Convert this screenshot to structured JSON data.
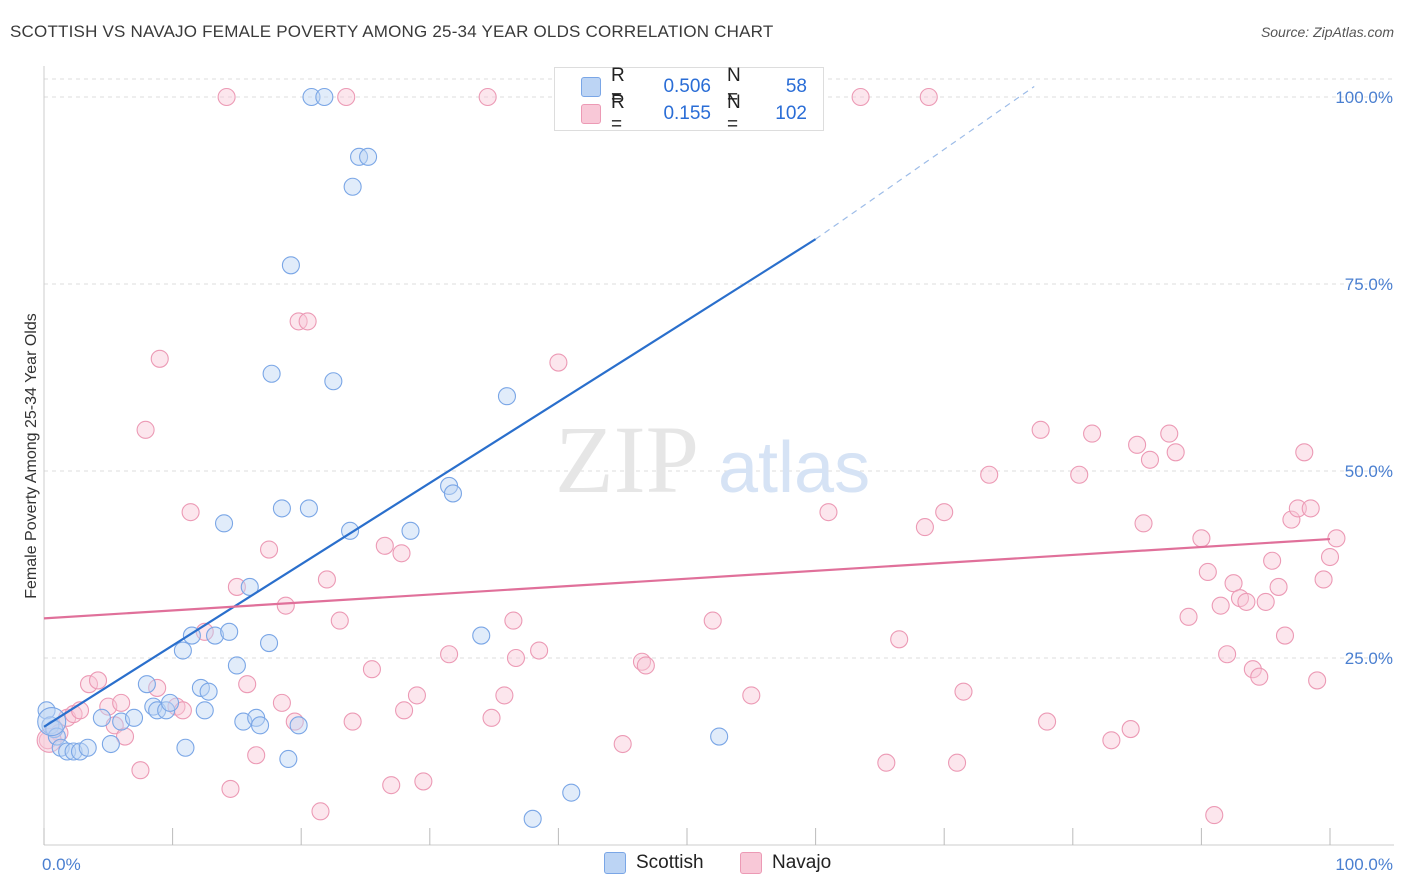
{
  "title": "SCOTTISH VS NAVAJO FEMALE POVERTY AMONG 25-34 YEAR OLDS CORRELATION CHART",
  "source": "Source: ZipAtlas.com",
  "watermark": {
    "zip": "ZIP",
    "atlas": "atlas"
  },
  "legend": {
    "rows": [
      {
        "r_label": "R =",
        "r_value": "0.506",
        "n_label": "N =",
        "n_value": "58",
        "color": "#a8c6f0"
      },
      {
        "r_label": "R =",
        "r_value": "0.155",
        "n_label": "N =",
        "n_value": "102",
        "color": "#f6b8cb"
      }
    ]
  },
  "bottom_legend": {
    "scottish": "Scottish",
    "navajo": "Navajo"
  },
  "chart_data": {
    "type": "scatter",
    "title": "SCOTTISH VS NAVAJO FEMALE POVERTY AMONG 25-34 YEAR OLDS CORRELATION CHART",
    "xlabel": "",
    "ylabel": "Female Poverty Among 25-34 Year Olds",
    "xlim": [
      0,
      100
    ],
    "ylim": [
      0,
      100
    ],
    "x_tick_labels": [
      "0.0%",
      "100.0%"
    ],
    "y_tick_labels": [
      "25.0%",
      "50.0%",
      "75.0%",
      "100.0%"
    ],
    "y_ticks": [
      25,
      50,
      75,
      100
    ],
    "grid": true,
    "legend_position": "top-center",
    "colors": {
      "scottish": "#6fa0e8",
      "navajo": "#ef93b0",
      "scottish_line": "#2a6fcc",
      "navajo_line": "#e0709a"
    },
    "series": [
      {
        "name": "Scottish",
        "trend": {
          "x": [
            0,
            60
          ],
          "y": [
            15.8,
            81
          ],
          "dashed_to": [
            77,
            99
          ]
        },
        "points": [
          [
            0.2,
            18
          ],
          [
            0.5,
            16
          ],
          [
            0.8,
            15.5
          ],
          [
            1,
            14.5
          ],
          [
            1.3,
            13
          ],
          [
            1.8,
            12.5
          ],
          [
            2.3,
            12.5
          ],
          [
            2.8,
            12.5
          ],
          [
            3.4,
            13
          ],
          [
            4.5,
            17
          ],
          [
            5.2,
            13.5
          ],
          [
            6,
            16.5
          ],
          [
            7,
            17
          ],
          [
            8,
            21.5
          ],
          [
            8.5,
            18.5
          ],
          [
            8.8,
            18
          ],
          [
            9.5,
            18
          ],
          [
            9.8,
            19
          ],
          [
            10.8,
            26
          ],
          [
            11,
            13
          ],
          [
            11.5,
            28
          ],
          [
            12.2,
            21
          ],
          [
            12.5,
            18
          ],
          [
            12.8,
            20.5
          ],
          [
            13.3,
            28
          ],
          [
            14,
            43
          ],
          [
            14.4,
            28.5
          ],
          [
            15,
            24
          ],
          [
            15.5,
            16.5
          ],
          [
            16,
            34.5
          ],
          [
            16.5,
            17
          ],
          [
            16.8,
            16
          ],
          [
            17.5,
            27
          ],
          [
            17.7,
            63
          ],
          [
            18.5,
            45
          ],
          [
            19,
            11.5
          ],
          [
            19.2,
            77.5
          ],
          [
            19.8,
            16
          ],
          [
            20.6,
            45
          ],
          [
            20.8,
            100
          ],
          [
            21.8,
            100
          ],
          [
            22.5,
            62
          ],
          [
            23.8,
            42
          ],
          [
            24,
            88
          ],
          [
            24.5,
            92
          ],
          [
            25.2,
            92
          ],
          [
            28.5,
            42
          ],
          [
            31.5,
            48
          ],
          [
            31.8,
            47
          ],
          [
            34,
            28
          ],
          [
            36,
            60
          ],
          [
            38,
            3.5
          ],
          [
            41,
            7
          ],
          [
            52.5,
            14.5
          ]
        ]
      },
      {
        "name": "Navajo",
        "trend": {
          "x": [
            0,
            100
          ],
          "y": [
            30.3,
            40.9
          ]
        },
        "points": [
          [
            0.3,
            14
          ],
          [
            0.8,
            15.5
          ],
          [
            1.2,
            15
          ],
          [
            1.8,
            17
          ],
          [
            2.3,
            17.5
          ],
          [
            2.8,
            18
          ],
          [
            3.5,
            21.5
          ],
          [
            4.2,
            22
          ],
          [
            5,
            18.5
          ],
          [
            5.5,
            16
          ],
          [
            6,
            19
          ],
          [
            6.3,
            14.5
          ],
          [
            7.5,
            10
          ],
          [
            7.9,
            55.5
          ],
          [
            8.8,
            21
          ],
          [
            9,
            65
          ],
          [
            10.3,
            18.5
          ],
          [
            10.8,
            18
          ],
          [
            11.4,
            44.5
          ],
          [
            12.5,
            28.5
          ],
          [
            14.2,
            100
          ],
          [
            14.5,
            7.5
          ],
          [
            15,
            34.5
          ],
          [
            15.8,
            21.5
          ],
          [
            16.5,
            12
          ],
          [
            17.5,
            39.5
          ],
          [
            18.5,
            19
          ],
          [
            18.8,
            32
          ],
          [
            19.5,
            16.5
          ],
          [
            19.8,
            70
          ],
          [
            20.5,
            70
          ],
          [
            21.5,
            4.5
          ],
          [
            22,
            35.5
          ],
          [
            23,
            30
          ],
          [
            23.5,
            100
          ],
          [
            24,
            16.5
          ],
          [
            25.5,
            23.5
          ],
          [
            26.5,
            40
          ],
          [
            27,
            8
          ],
          [
            27.8,
            39
          ],
          [
            28,
            18
          ],
          [
            29,
            20
          ],
          [
            29.5,
            8.5
          ],
          [
            31.5,
            25.5
          ],
          [
            34.5,
            100
          ],
          [
            34.8,
            17
          ],
          [
            35.8,
            20
          ],
          [
            36.5,
            30
          ],
          [
            36.7,
            25
          ],
          [
            38.5,
            26
          ],
          [
            40,
            64.5
          ],
          [
            41.5,
            100
          ],
          [
            45,
            13.5
          ],
          [
            46.5,
            24.5
          ],
          [
            46.8,
            24
          ],
          [
            52,
            30
          ],
          [
            55,
            20
          ],
          [
            61,
            44.5
          ],
          [
            63.5,
            100
          ],
          [
            65.5,
            11
          ],
          [
            66.5,
            27.5
          ],
          [
            68.5,
            42.5
          ],
          [
            68.8,
            100
          ],
          [
            70,
            44.5
          ],
          [
            71,
            11
          ],
          [
            71.5,
            20.5
          ],
          [
            73.5,
            49.5
          ],
          [
            77.5,
            55.5
          ],
          [
            78,
            16.5
          ],
          [
            80.5,
            49.5
          ],
          [
            81.5,
            55
          ],
          [
            83,
            14
          ],
          [
            84.5,
            15.5
          ],
          [
            85,
            53.5
          ],
          [
            85.5,
            43
          ],
          [
            86,
            51.5
          ],
          [
            87.5,
            55
          ],
          [
            88,
            52.5
          ],
          [
            89,
            30.5
          ],
          [
            90,
            41
          ],
          [
            90.5,
            36.5
          ],
          [
            91,
            4
          ],
          [
            91.5,
            32
          ],
          [
            92,
            25.5
          ],
          [
            92.5,
            35
          ],
          [
            93,
            33
          ],
          [
            93.5,
            32.5
          ],
          [
            94,
            23.5
          ],
          [
            94.5,
            22.5
          ],
          [
            95,
            32.5
          ],
          [
            95.5,
            38
          ],
          [
            96,
            34.5
          ],
          [
            96.5,
            28
          ],
          [
            97,
            43.5
          ],
          [
            97.5,
            45
          ],
          [
            98,
            52.5
          ],
          [
            98.5,
            45
          ],
          [
            99,
            22
          ],
          [
            99.5,
            35.5
          ],
          [
            100,
            38.5
          ],
          [
            100.5,
            41
          ]
        ]
      }
    ]
  }
}
